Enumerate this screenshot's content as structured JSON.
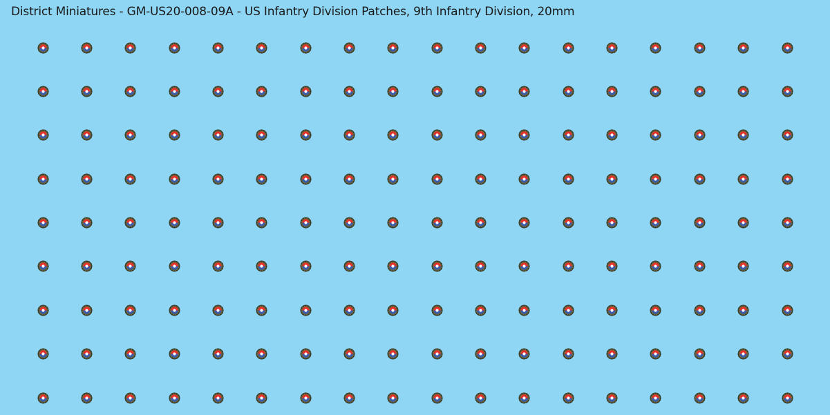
{
  "title": "District Miniatures - GM-US20-008-09A - US Infantry Division Patches, 9th Infantry Division, 20mm",
  "grid": {
    "rows": 9,
    "columns": 18
  },
  "patch": {
    "icon": "9th-infantry-division-patch-icon",
    "colors": {
      "outline": "#3b3a2a",
      "ring": "#6b6b3a",
      "top": "#e8312b",
      "bottom": "#3b5bab",
      "center": "#ffffff"
    }
  },
  "colors": {
    "background": "#8fd6f5",
    "text": "#1a1a1a"
  }
}
